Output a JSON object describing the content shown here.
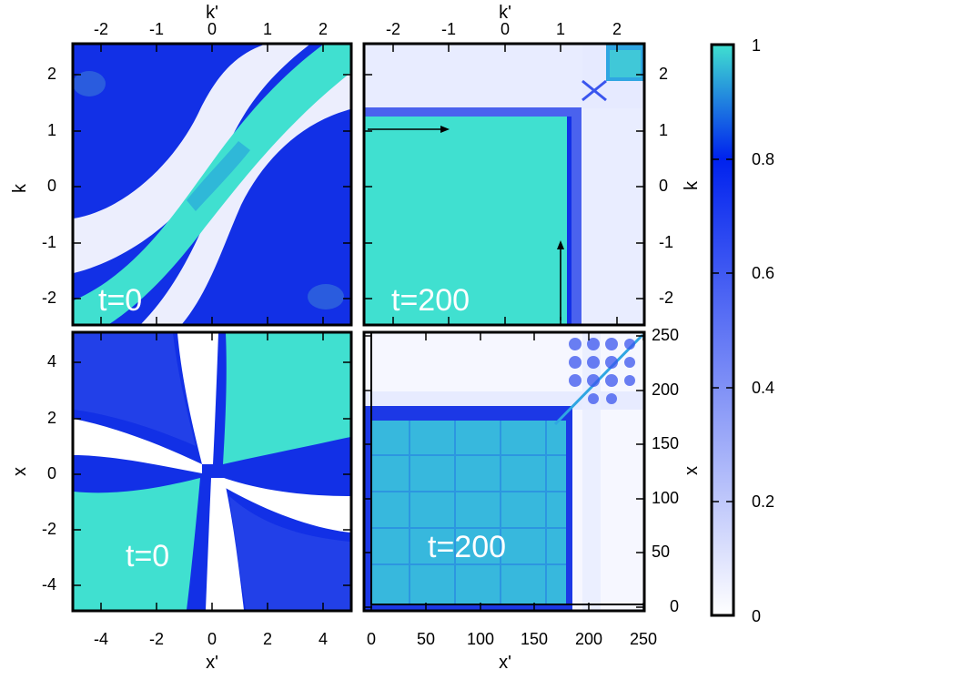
{
  "chart_data": [
    {
      "type": "heatmap",
      "panel": "top-left",
      "time_label": "t=0",
      "xlabel": "k'",
      "ylabel": "k",
      "xlim": [
        -2.5,
        2.5
      ],
      "ylim": [
        -2.5,
        2.5
      ],
      "x_ticks": [
        "-2",
        "-1",
        "0",
        "1",
        "2"
      ],
      "y_ticks": [
        "2",
        "1",
        "0",
        "-1",
        "-2"
      ],
      "x_axis_side": "top",
      "y_axis_side": "left",
      "pattern": "bright diagonal ridge from (-2.5,-2.5) to (2.5,2.5), white bands on either side, blue elsewhere"
    },
    {
      "type": "heatmap",
      "panel": "top-right",
      "time_label": "t=200",
      "xlabel": "k'",
      "ylabel": "k",
      "xlim": [
        -2.5,
        2.5
      ],
      "ylim": [
        -2.5,
        2.5
      ],
      "x_ticks": [
        "-2",
        "-1",
        "0",
        "1",
        "2"
      ],
      "y_ticks": [
        "2",
        "1",
        "0",
        "-1",
        "-2"
      ],
      "x_axis_side": "top",
      "y_axis_side": "right",
      "pattern": "square block of value 1 for k,k' < ~1.1, blue border band, near-zero outside, small bright block near (2.2,2.2)",
      "arrows": [
        {
          "from": [
            -2.5,
            1.0
          ],
          "to": [
            -1.0,
            1.0
          ]
        },
        {
          "from": [
            1.0,
            -2.5
          ],
          "to": [
            1.0,
            -1.0
          ]
        }
      ]
    },
    {
      "type": "heatmap",
      "panel": "bottom-left",
      "time_label": "t=0",
      "xlabel": "x'",
      "ylabel": "x",
      "xlim": [
        -5,
        5
      ],
      "ylim": [
        -5,
        5
      ],
      "x_ticks": [
        "-4",
        "-2",
        "0",
        "2",
        "4"
      ],
      "y_ticks": [
        "4",
        "2",
        "0",
        "-2",
        "-4"
      ],
      "x_axis_side": "bottom",
      "y_axis_side": "left",
      "pattern": "bright near the anti-diagonal corners (top-right, bottom-left), white cross-shaped bands through the origin"
    },
    {
      "type": "heatmap",
      "panel": "bottom-right",
      "time_label": "t=200",
      "xlabel": "x'",
      "ylabel": "x",
      "xlim": [
        0,
        250
      ],
      "ylim": [
        0,
        250
      ],
      "x_ticks": [
        "0",
        "50",
        "100",
        "150",
        "200",
        "250"
      ],
      "y_ticks": [
        "250",
        "200",
        "150",
        "100",
        "50",
        "0"
      ],
      "x_axis_side": "bottom",
      "y_axis_side": "right",
      "pattern": "bright square block for x,x' < ~175 with blue border, mostly white outside, diagonal line and checker blobs near the top-right corner"
    }
  ],
  "colorbar": {
    "ticks": [
      "1",
      "0.8",
      "0.6",
      "0.4",
      "0.2",
      "0"
    ],
    "range": [
      0,
      1
    ],
    "colors": [
      "#ffffff",
      "#0022ee",
      "#40e0d0"
    ]
  }
}
